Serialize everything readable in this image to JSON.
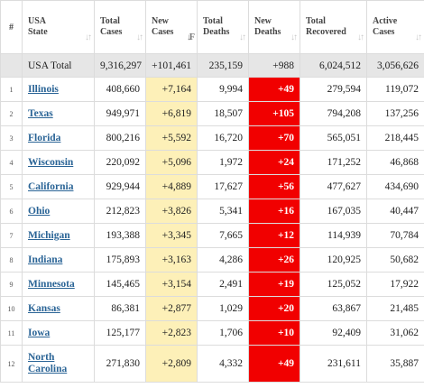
{
  "headers": {
    "num": "#",
    "state": [
      "USA",
      "State"
    ],
    "total_cases": [
      "Total",
      "Cases"
    ],
    "new_cases": [
      "New",
      "Cases"
    ],
    "total_deaths": [
      "Total",
      "Deaths"
    ],
    "new_deaths": [
      "New",
      "Deaths"
    ],
    "total_recovered": [
      "Total",
      "Recovered"
    ],
    "active_cases": [
      "Active",
      "Cases"
    ]
  },
  "sort_icons": {
    "inactive": "↓↑",
    "active": "↓F"
  },
  "total_row": {
    "label": "USA Total",
    "total_cases": "9,316,297",
    "new_cases": "+101,461",
    "total_deaths": "235,159",
    "new_deaths": "+988",
    "total_recovered": "6,024,512",
    "active_cases": "3,056,626"
  },
  "rows": [
    {
      "num": "1",
      "state": "Illinois",
      "total_cases": "408,660",
      "new_cases": "+7,164",
      "total_deaths": "9,994",
      "new_deaths": "+49",
      "total_recovered": "279,594",
      "active_cases": "119,072"
    },
    {
      "num": "2",
      "state": "Texas",
      "total_cases": "949,971",
      "new_cases": "+6,819",
      "total_deaths": "18,507",
      "new_deaths": "+105",
      "total_recovered": "794,208",
      "active_cases": "137,256"
    },
    {
      "num": "3",
      "state": "Florida",
      "total_cases": "800,216",
      "new_cases": "+5,592",
      "total_deaths": "16,720",
      "new_deaths": "+70",
      "total_recovered": "565,051",
      "active_cases": "218,445"
    },
    {
      "num": "4",
      "state": "Wisconsin",
      "total_cases": "220,092",
      "new_cases": "+5,096",
      "total_deaths": "1,972",
      "new_deaths": "+24",
      "total_recovered": "171,252",
      "active_cases": "46,868"
    },
    {
      "num": "5",
      "state": "California",
      "total_cases": "929,944",
      "new_cases": "+4,889",
      "total_deaths": "17,627",
      "new_deaths": "+56",
      "total_recovered": "477,627",
      "active_cases": "434,690"
    },
    {
      "num": "6",
      "state": "Ohio",
      "total_cases": "212,823",
      "new_cases": "+3,826",
      "total_deaths": "5,341",
      "new_deaths": "+16",
      "total_recovered": "167,035",
      "active_cases": "40,447"
    },
    {
      "num": "7",
      "state": "Michigan",
      "total_cases": "193,388",
      "new_cases": "+3,345",
      "total_deaths": "7,665",
      "new_deaths": "+12",
      "total_recovered": "114,939",
      "active_cases": "70,784"
    },
    {
      "num": "8",
      "state": "Indiana",
      "total_cases": "175,893",
      "new_cases": "+3,163",
      "total_deaths": "4,286",
      "new_deaths": "+26",
      "total_recovered": "120,925",
      "active_cases": "50,682"
    },
    {
      "num": "9",
      "state": "Minnesota",
      "total_cases": "145,465",
      "new_cases": "+3,154",
      "total_deaths": "2,491",
      "new_deaths": "+19",
      "total_recovered": "125,052",
      "active_cases": "17,922"
    },
    {
      "num": "10",
      "state": "Kansas",
      "total_cases": "86,381",
      "new_cases": "+2,877",
      "total_deaths": "1,029",
      "new_deaths": "+20",
      "total_recovered": "63,867",
      "active_cases": "21,485"
    },
    {
      "num": "11",
      "state": "Iowa",
      "total_cases": "125,177",
      "new_cases": "+2,823",
      "total_deaths": "1,706",
      "new_deaths": "+10",
      "total_recovered": "92,409",
      "active_cases": "31,062"
    },
    {
      "num": "12",
      "state": "North Carolina",
      "total_cases": "271,830",
      "new_cases": "+2,809",
      "total_deaths": "4,332",
      "new_deaths": "+49",
      "total_recovered": "231,611",
      "active_cases": "35,887"
    }
  ],
  "colors": {
    "new_cases_bg": "#fdf0b8",
    "new_deaths_bg": "#f10000",
    "total_row_bg": "#e6e6e6",
    "state_link": "#2a6496"
  }
}
